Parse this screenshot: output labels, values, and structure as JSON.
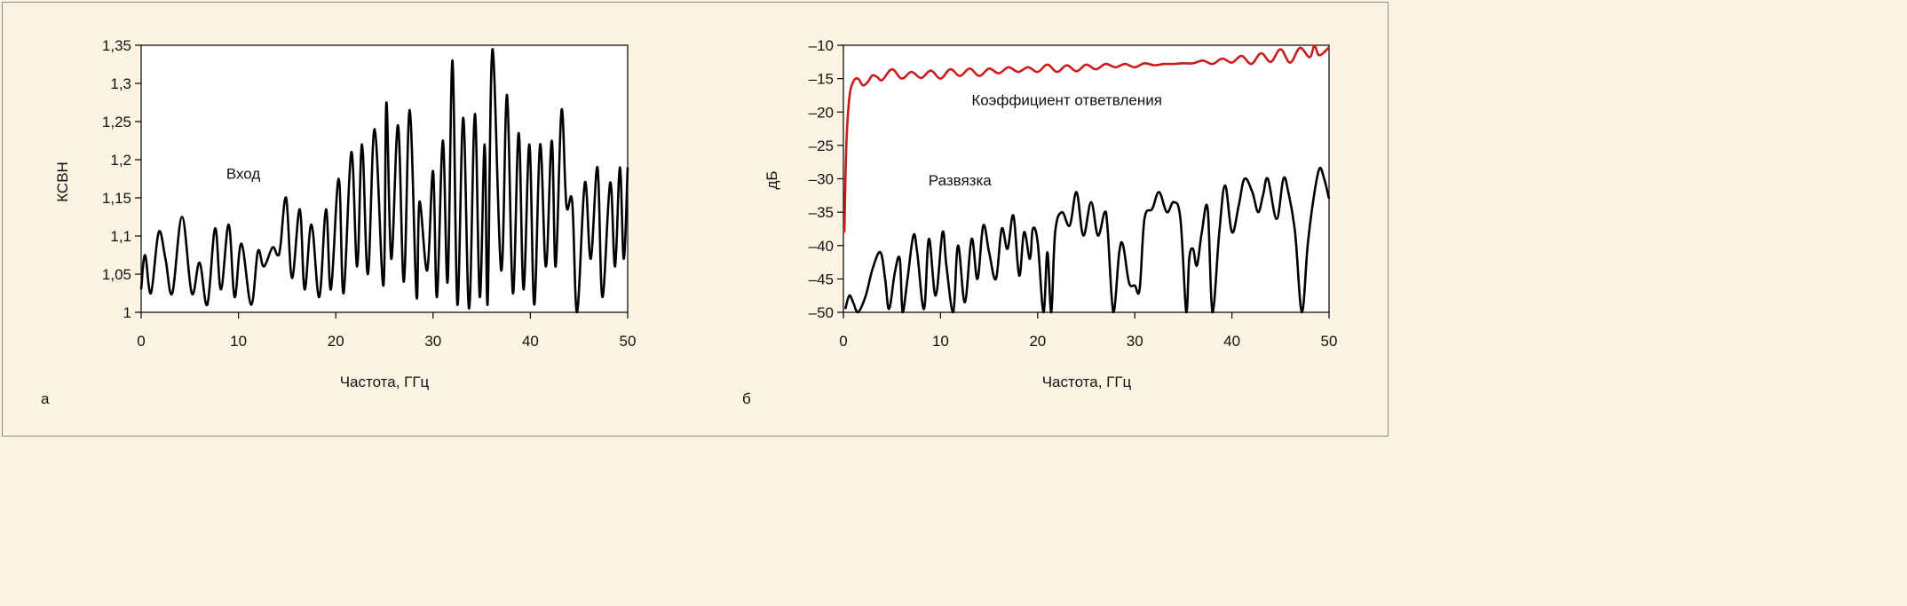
{
  "chart_data": [
    {
      "type": "line",
      "panel_label": "а",
      "title": "",
      "xlabel": "Частота, ГГц",
      "ylabel": "КСВН",
      "xlim": [
        0,
        50
      ],
      "ylim": [
        1,
        1.35
      ],
      "x_ticks": [
        0,
        10,
        20,
        30,
        40,
        50
      ],
      "x_tick_labels": [
        "0",
        "10",
        "20",
        "30",
        "40",
        "50"
      ],
      "y_ticks": [
        1,
        1.05,
        1.1,
        1.15,
        1.2,
        1.25,
        1.3,
        1.35
      ],
      "y_tick_labels": [
        "1",
        "1,05",
        "1,1",
        "1,15",
        "1,2",
        "1,25",
        "1,3",
        "1,35"
      ],
      "grid": false,
      "annotations": [
        {
          "text": "Вход",
          "x": 10.5,
          "y": 1.175
        }
      ],
      "series": [
        {
          "name": "Вход",
          "color": "#000000",
          "x": [
            0,
            0.4,
            1,
            1.8,
            2.5,
            3.2,
            4.2,
            5.2,
            6,
            6.8,
            7.6,
            8.2,
            9,
            9.6,
            10.3,
            11.3,
            12,
            12.6,
            13.5,
            14,
            14.3,
            14.9,
            15.5,
            16.3,
            16.8,
            17.5,
            18.3,
            19,
            19.5,
            20.3,
            20.8,
            21.6,
            22.2,
            22.7,
            23.3,
            24,
            24.9,
            25.2,
            25.7,
            26.4,
            27,
            27.6,
            28.3,
            28.6,
            29.4,
            30,
            30.4,
            31,
            31.5,
            32,
            32.5,
            33.1,
            33.7,
            34.3,
            34.8,
            35.3,
            35.6,
            36.1,
            37,
            37.6,
            38.2,
            38.8,
            39.3,
            39.9,
            40.4,
            41,
            41.6,
            42.2,
            42.6,
            43.2,
            43.7,
            44.3,
            44.8,
            45.6,
            46.2,
            46.9,
            47.4,
            48.2,
            48.7,
            49.2,
            49.6,
            50
          ],
          "y": [
            1.03,
            1.075,
            1.025,
            1.105,
            1.07,
            1.025,
            1.125,
            1.025,
            1.065,
            1.01,
            1.11,
            1.03,
            1.115,
            1.02,
            1.09,
            1.01,
            1.08,
            1.06,
            1.085,
            1.075,
            1.085,
            1.15,
            1.045,
            1.135,
            1.03,
            1.115,
            1.02,
            1.135,
            1.03,
            1.175,
            1.025,
            1.21,
            1.06,
            1.22,
            1.05,
            1.24,
            1.035,
            1.275,
            1.07,
            1.245,
            1.04,
            1.265,
            1.02,
            1.145,
            1.055,
            1.185,
            1.02,
            1.225,
            1.04,
            1.33,
            1.01,
            1.255,
            1.005,
            1.26,
            1.02,
            1.22,
            1.01,
            1.345,
            1.055,
            1.285,
            1.025,
            1.235,
            1.03,
            1.22,
            1.01,
            1.22,
            1.06,
            1.225,
            1.06,
            1.265,
            1.14,
            1.145,
            1.0,
            1.17,
            1.07,
            1.19,
            1.02,
            1.17,
            1.06,
            1.19,
            1.07,
            1.19
          ]
        }
      ]
    },
    {
      "type": "line",
      "panel_label": "б",
      "title": "",
      "xlabel": "Частота, ГГц",
      "ylabel": "дБ",
      "xlim": [
        0,
        50
      ],
      "ylim": [
        -50,
        -10
      ],
      "x_ticks": [
        0,
        10,
        20,
        30,
        40,
        50
      ],
      "x_tick_labels": [
        "0",
        "10",
        "20",
        "30",
        "40",
        "50"
      ],
      "y_ticks": [
        -50,
        -45,
        -40,
        -35,
        -30,
        -25,
        -20,
        -15,
        -10
      ],
      "y_tick_labels": [
        "–50",
        "–45",
        "–40",
        "–35",
        "–30",
        "–25",
        "–20",
        "–15",
        "–10"
      ],
      "grid": false,
      "annotations": [
        {
          "text": "Коэффициент ответвления",
          "x": 23,
          "y": -19
        },
        {
          "text": "Развязка",
          "x": 12,
          "y": -31
        }
      ],
      "series": [
        {
          "name": "Коэффициент ответвления",
          "color": "#cc1b1b",
          "x": [
            0.1,
            0.3,
            0.6,
            1,
            1.5,
            2,
            2.5,
            3,
            3.5,
            4,
            5,
            6,
            7,
            8,
            9,
            10,
            11,
            12,
            13,
            14,
            15,
            16,
            17,
            18,
            19,
            20,
            21,
            22,
            23,
            24,
            25,
            26,
            27,
            28,
            29,
            30,
            31,
            32,
            33,
            34,
            35,
            36,
            37,
            38,
            39,
            40,
            41,
            42,
            43,
            44,
            45,
            46,
            47,
            48,
            48.5,
            49,
            50
          ],
          "y": [
            -38,
            -25,
            -18,
            -15.5,
            -15,
            -16,
            -15.5,
            -14.5,
            -14.8,
            -15.2,
            -13.6,
            -15,
            -14,
            -14.9,
            -13.8,
            -15,
            -13.6,
            -14.6,
            -13.5,
            -14.6,
            -13.5,
            -14.2,
            -13.3,
            -14,
            -13.3,
            -14,
            -12.9,
            -14,
            -13,
            -13.9,
            -12.9,
            -13.6,
            -12.8,
            -13.3,
            -12.8,
            -13.3,
            -12.7,
            -13,
            -12.8,
            -12.8,
            -12.7,
            -12.7,
            -12.3,
            -12.8,
            -12,
            -12.6,
            -11.6,
            -12.8,
            -11.2,
            -12.5,
            -10.6,
            -12.6,
            -10.4,
            -11.8,
            -10.1,
            -11.5,
            -10.3
          ]
        },
        {
          "name": "Развязка",
          "color": "#000000",
          "x": [
            0.2,
            0.6,
            1,
            1.5,
            2.3,
            3,
            3.8,
            4.3,
            4.7,
            5.3,
            5.8,
            6.1,
            6.6,
            7.2,
            7.6,
            8.3,
            8.8,
            9.5,
            10.2,
            10.6,
            11.3,
            11.8,
            12.5,
            13.2,
            13.8,
            14.4,
            15,
            15.7,
            16.3,
            16.9,
            17.5,
            18.1,
            18.6,
            19.2,
            19.5,
            20,
            20.6,
            21,
            21.4,
            21.8,
            22.5,
            23.3,
            24,
            24.7,
            25.5,
            26.2,
            26.9,
            27.2,
            27.8,
            28.4,
            28.8,
            29.4,
            30,
            30.5,
            31,
            31.8,
            32.5,
            33.3,
            34,
            34.7,
            35.3,
            35.6,
            36,
            36.4,
            36.9,
            37.5,
            38,
            38.7,
            39.3,
            40,
            40.7,
            41.3,
            42.1,
            42.7,
            43.2,
            43.7,
            44.6,
            45.3,
            45.8,
            46.5,
            47.2,
            47.8,
            48.4,
            49,
            49.5,
            50
          ],
          "y": [
            -49.5,
            -47.5,
            -48.5,
            -50,
            -47.5,
            -43.5,
            -41,
            -45,
            -49.5,
            -44,
            -42,
            -50,
            -45,
            -38.5,
            -41,
            -49.5,
            -39,
            -47.5,
            -38,
            -43,
            -50,
            -40,
            -48.5,
            -39,
            -45,
            -37,
            -41,
            -45,
            -37.5,
            -40.5,
            -35.5,
            -44.5,
            -38,
            -42,
            -37.5,
            -39.5,
            -50,
            -41,
            -50,
            -38,
            -35,
            -37,
            -32,
            -38.5,
            -33.5,
            -38.5,
            -35,
            -37.5,
            -50,
            -41,
            -40,
            -45.5,
            -46,
            -46.5,
            -36,
            -34.5,
            -32,
            -35,
            -33.5,
            -36,
            -50,
            -42,
            -40.5,
            -43,
            -38,
            -34.5,
            -50,
            -38,
            -31,
            -38,
            -34,
            -30,
            -32,
            -35,
            -32.5,
            -30,
            -36,
            -30,
            -32,
            -38,
            -50,
            -40,
            -33,
            -28.5,
            -30,
            -33
          ]
        }
      ]
    }
  ]
}
